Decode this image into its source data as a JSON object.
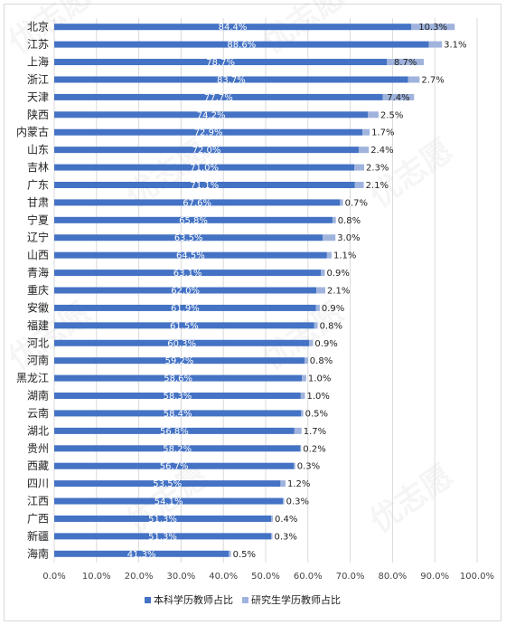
{
  "chart_data": {
    "type": "bar",
    "orientation": "horizontal",
    "stacked": true,
    "categories": [
      "北京",
      "江苏",
      "上海",
      "浙江",
      "天津",
      "陕西",
      "内蒙古",
      "山东",
      "吉林",
      "广东",
      "甘肃",
      "宁夏",
      "辽宁",
      "山西",
      "青海",
      "重庆",
      "安徽",
      "福建",
      "河北",
      "河南",
      "黑龙江",
      "湖南",
      "云南",
      "湖北",
      "贵州",
      "西藏",
      "四川",
      "江西",
      "广西",
      "新疆",
      "海南"
    ],
    "series": [
      {
        "name": "本科学历教师占比",
        "color": "#4472c4",
        "values": [
          84.4,
          88.6,
          78.7,
          83.7,
          77.7,
          74.2,
          72.9,
          72.0,
          71.0,
          71.1,
          67.6,
          65.8,
          63.5,
          64.5,
          63.1,
          62.0,
          61.9,
          61.5,
          60.3,
          59.2,
          58.6,
          58.3,
          58.4,
          56.8,
          58.2,
          56.7,
          53.5,
          54.1,
          51.3,
          51.3,
          41.3
        ],
        "labels": [
          "84.4%",
          "88.6%",
          "78.7%",
          "83.7%",
          "77.7%",
          "74.2%",
          "72.9%",
          "72.0%",
          "71.0%",
          "71.1%",
          "67.6%",
          "65.8%",
          "63.5%",
          "64.5%",
          "63.1%",
          "62.0%",
          "61.9%",
          "61.5%",
          "60.3%",
          "59.2%",
          "58.6%",
          "58.3%",
          "58.4%",
          "56.8%",
          "58.2%",
          "56.7%",
          "53.5%",
          "54.1%",
          "51.3%",
          "51.3%",
          "41.3%"
        ]
      },
      {
        "name": "研究生学历教师占比",
        "color": "#9fb3dd",
        "values": [
          10.3,
          3.1,
          8.7,
          2.7,
          7.4,
          2.5,
          1.7,
          2.4,
          2.3,
          2.1,
          0.7,
          0.8,
          3.0,
          1.1,
          0.9,
          2.1,
          0.9,
          0.8,
          0.9,
          0.8,
          1.0,
          1.0,
          0.5,
          1.7,
          0.2,
          0.3,
          1.2,
          0.3,
          0.4,
          0.3,
          0.5
        ],
        "labels": [
          "10.3%",
          "3.1%",
          "8.7%",
          "2.7%",
          "7.4%",
          "2.5%",
          "1.7%",
          "2.4%",
          "2.3%",
          "2.1%",
          "0.7%",
          "0.8%",
          "3.0%",
          "1.1%",
          "0.9%",
          "2.1%",
          "0.9%",
          "0.8%",
          "0.9%",
          "0.8%",
          "1.0%",
          "1.0%",
          "0.5%",
          "1.7%",
          "0.2%",
          "0.3%",
          "1.2%",
          "0.3%",
          "0.4%",
          "0.3%",
          "0.5%"
        ]
      }
    ],
    "x_ticks": [
      "0.0%",
      "10.0%",
      "20.0%",
      "30.0%",
      "40.0%",
      "50.0%",
      "60.0%",
      "70.0%",
      "80.0%",
      "90.0%",
      "100.0%"
    ],
    "xlim": [
      0,
      100
    ],
    "grid": true,
    "legend": {
      "position": "bottom",
      "items": [
        "本科学历教师占比",
        "研究生学历教师占比"
      ]
    },
    "watermark": "优志愿"
  }
}
